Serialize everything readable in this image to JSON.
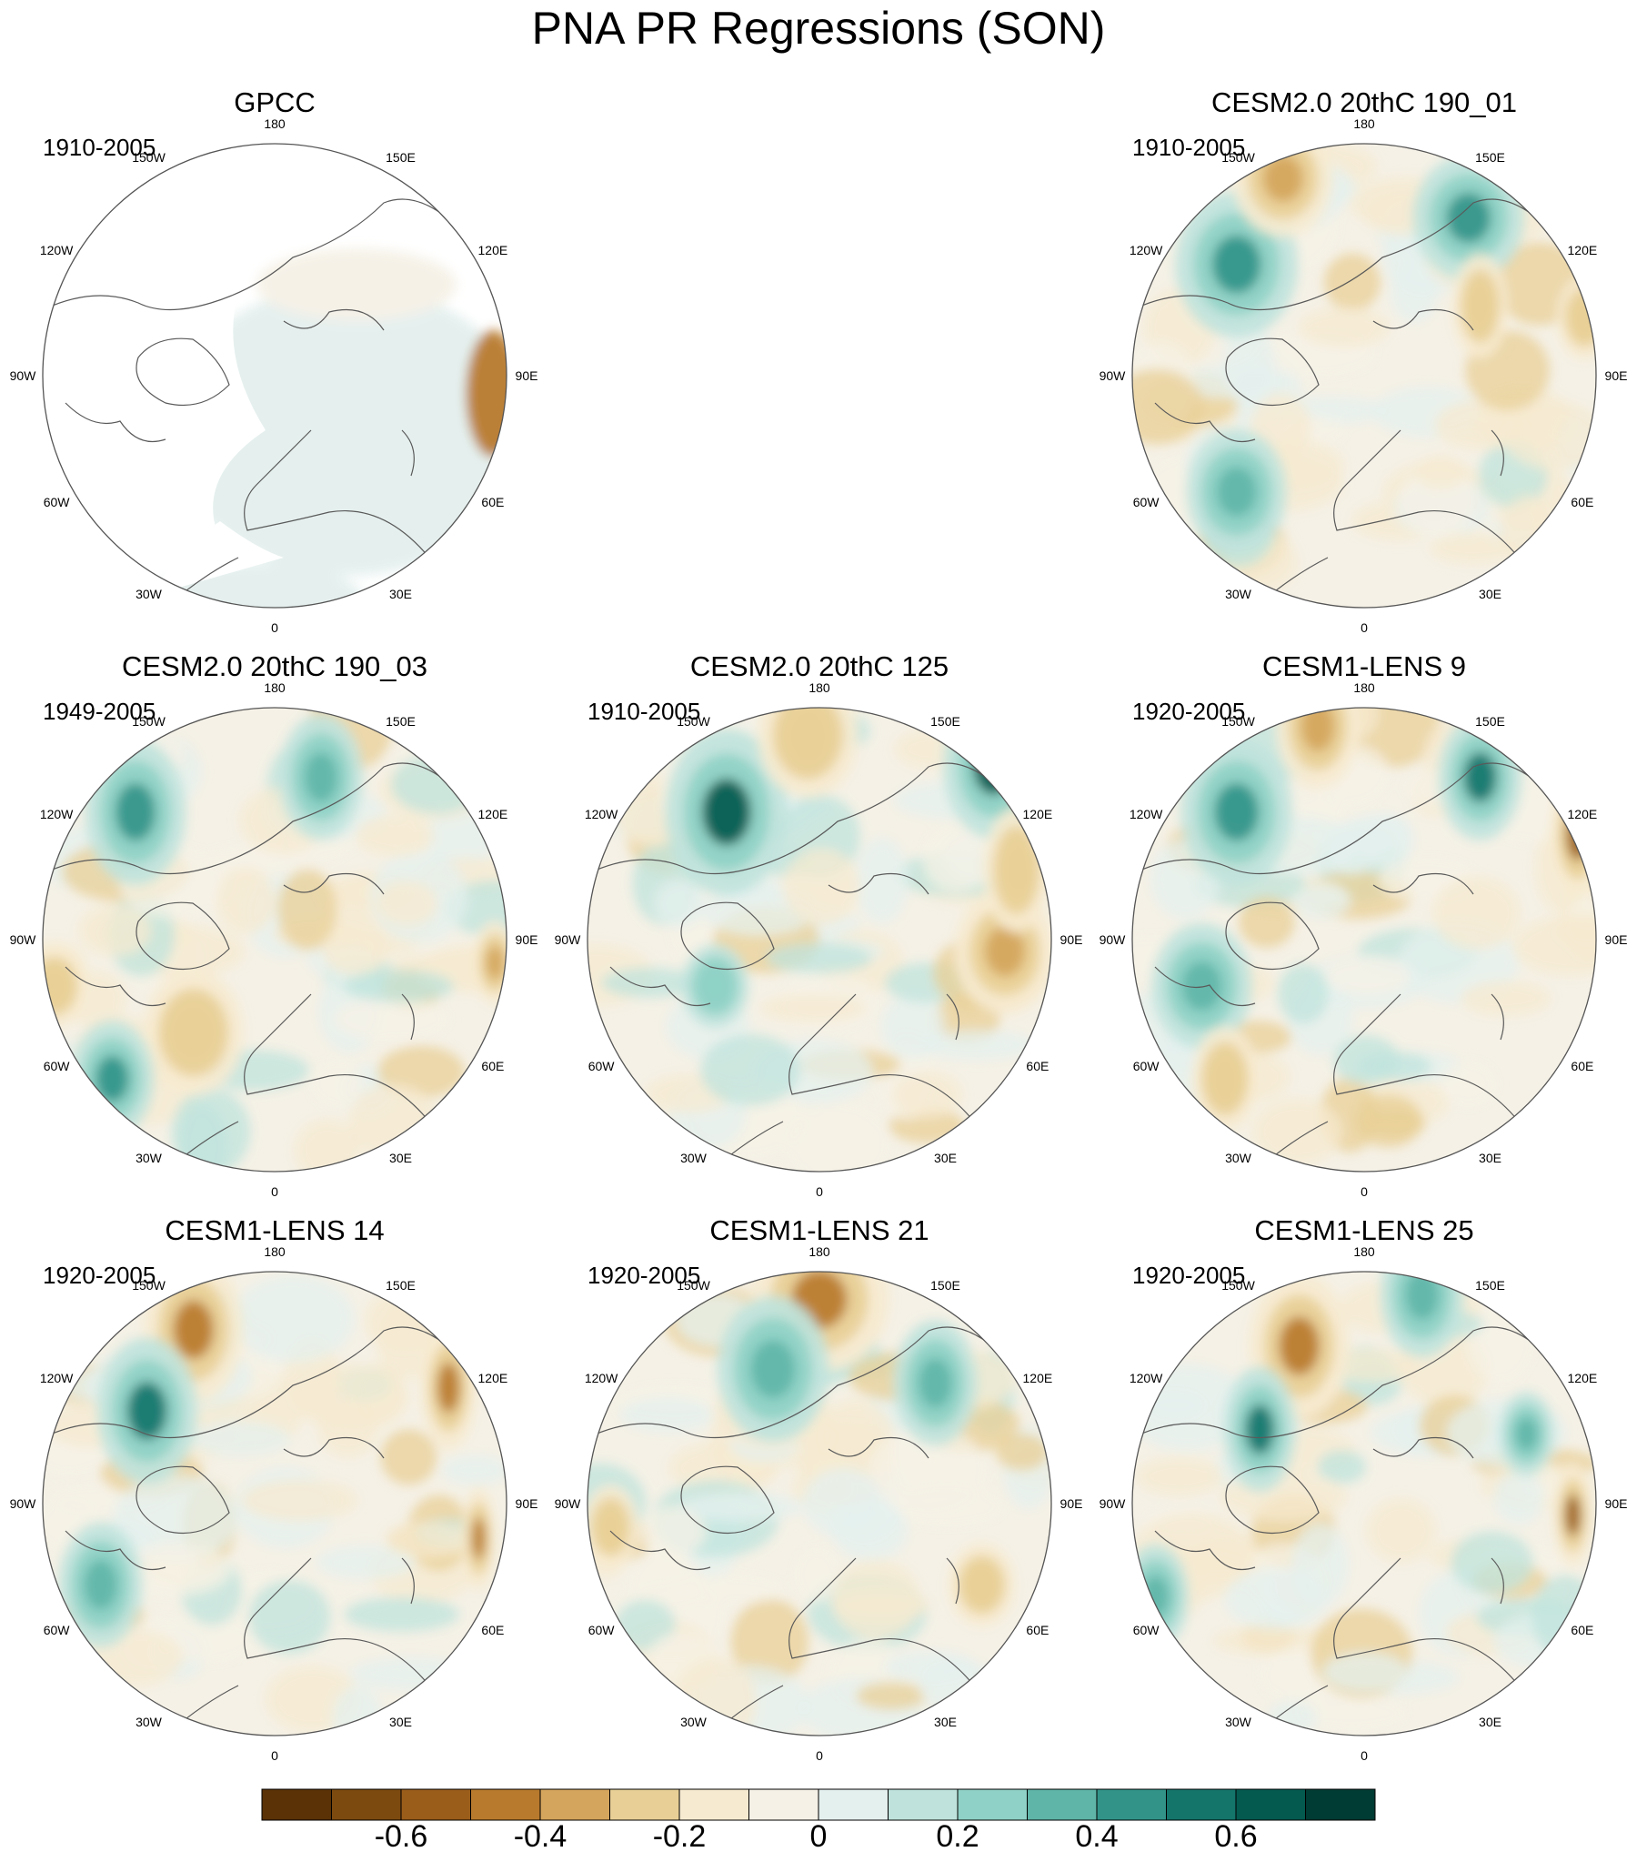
{
  "title": "PNA PR Regressions (SON)",
  "panels": [
    {
      "title": "GPCC",
      "period": "1910-2005",
      "style": "obs"
    },
    {
      "title": "CESM2.0 20thC 190_01",
      "period": "1910-2005",
      "style": "model"
    },
    {
      "title": "CESM2.0 20thC 190_03",
      "period": "1949-2005",
      "style": "model"
    },
    {
      "title": "CESM2.0 20thC 125",
      "period": "1910-2005",
      "style": "model"
    },
    {
      "title": "CESM1-LENS 9",
      "period": "1920-2005",
      "style": "model"
    },
    {
      "title": "CESM1-LENS 14",
      "period": "1920-2005",
      "style": "model"
    },
    {
      "title": "CESM1-LENS 21",
      "period": "1920-2005",
      "style": "model"
    },
    {
      "title": "CESM1-LENS 25",
      "period": "1920-2005",
      "style": "model"
    }
  ],
  "longitude_labels": {
    "top": "180",
    "bottom": "0",
    "left_mid": "90W",
    "right_mid": "90E",
    "upper_left_outer": "120W",
    "upper_left_inner": "150W",
    "upper_right_inner": "150E",
    "upper_right_outer": "120E",
    "lower_left_outer": "60W",
    "lower_left_inner": "30W",
    "lower_right_inner": "30E",
    "lower_right_outer": "60E"
  },
  "colorbar": {
    "colors": [
      "#5a3206",
      "#7c4a0f",
      "#9a5d1a",
      "#b87a2d",
      "#d4a55c",
      "#e8cf96",
      "#f6ead0",
      "#f5f1e6",
      "#e4f0ee",
      "#bfe3dc",
      "#8fd1c6",
      "#5fb5a8",
      "#329489",
      "#14756b",
      "#045a4f",
      "#003c33"
    ],
    "tick_labels": [
      "-0.6",
      "-0.4",
      "-0.2",
      "0",
      "0.2",
      "0.4",
      "0.6"
    ],
    "tick_values": [
      -0.6,
      -0.4,
      -0.2,
      0,
      0.2,
      0.4,
      0.6
    ],
    "range": [
      -0.8,
      0.8
    ]
  }
}
